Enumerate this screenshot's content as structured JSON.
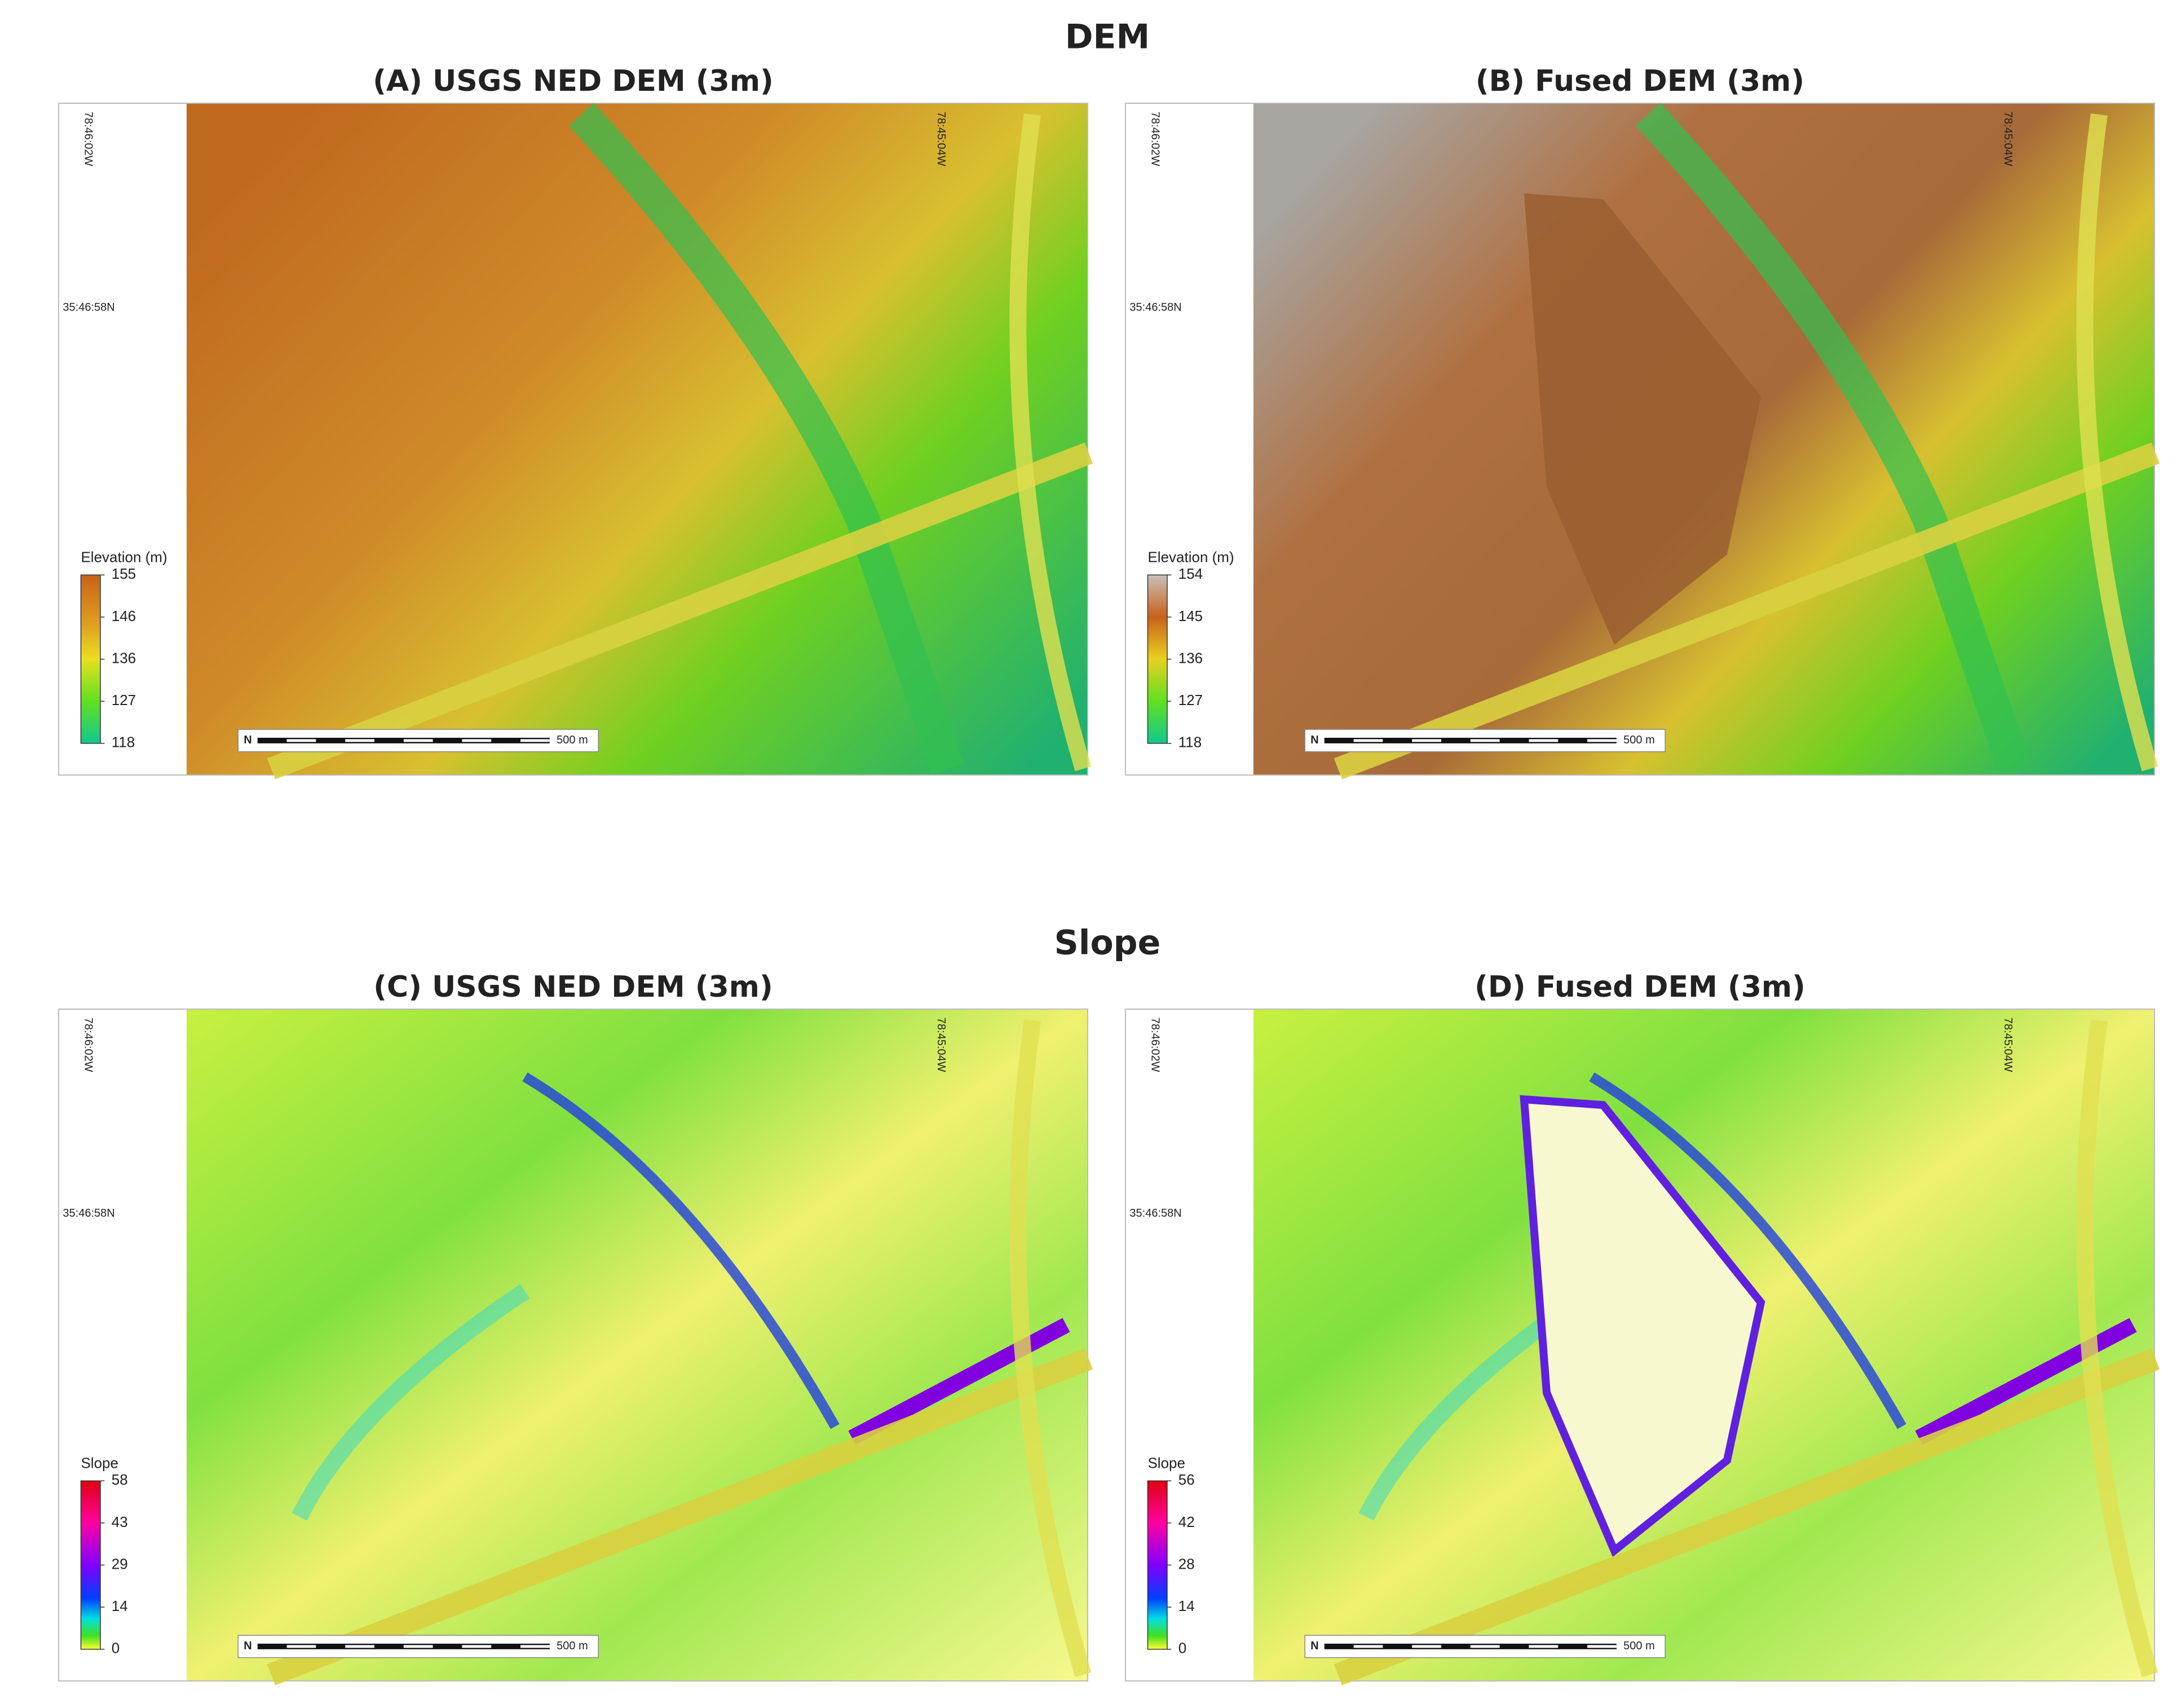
{
  "sections": [
    {
      "title": "DEM",
      "panels": [
        {
          "title": "(A) USGS NED DEM (3m)",
          "lon_labels": [
            "78:46:02W",
            "78:45:04W"
          ],
          "lat_label": "35:46:58N",
          "legend": {
            "title": "Elevation (m)",
            "ticks": [
              155,
              146,
              136,
              127,
              118
            ]
          },
          "scale_bar": "500 m",
          "north": "N"
        },
        {
          "title": "(B) Fused DEM (3m)",
          "lon_labels": [
            "78:46:02W",
            "78:45:04W"
          ],
          "lat_label": "35:46:58N",
          "legend": {
            "title": "Elevation (m)",
            "ticks": [
              154,
              145,
              136,
              127,
              118
            ]
          },
          "scale_bar": "500 m",
          "north": "N"
        }
      ]
    },
    {
      "title": "Slope",
      "panels": [
        {
          "title": "(C) USGS NED DEM (3m)",
          "lon_labels": [
            "78:46:02W",
            "78:45:04W"
          ],
          "lat_label": "35:46:58N",
          "legend": {
            "title": "Slope",
            "ticks": [
              58,
              43,
              29,
              14,
              0
            ]
          },
          "scale_bar": "500 m",
          "north": "N"
        },
        {
          "title": "(D) Fused DEM (3m)",
          "lon_labels": [
            "78:46:02W",
            "78:45:04W"
          ],
          "lat_label": "35:46:58N",
          "legend": {
            "title": "Slope",
            "ticks": [
              56,
              42,
              28,
              14,
              0
            ]
          },
          "scale_bar": "500 m",
          "north": "N"
        }
      ]
    }
  ]
}
